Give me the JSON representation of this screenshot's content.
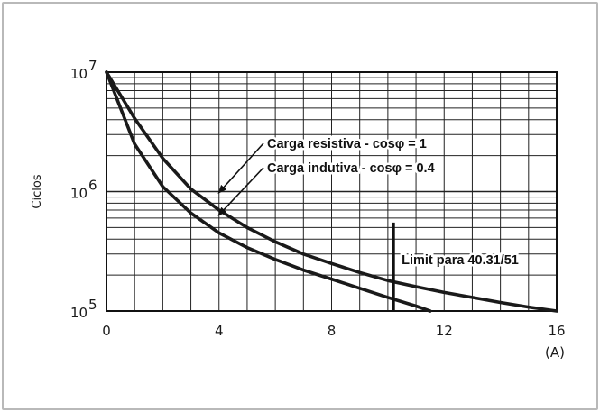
{
  "chart_data": {
    "type": "line",
    "title": "",
    "ylabel": "Ciclos",
    "xlabel": "(A)",
    "x_ticks": [
      "0",
      "4",
      "8",
      "12",
      "16"
    ],
    "y_ticks": [
      {
        "base": "10",
        "exp": "5",
        "value": 100000
      },
      {
        "base": "10",
        "exp": "6",
        "value": 1000000
      },
      {
        "base": "10",
        "exp": "7",
        "value": 10000000
      }
    ],
    "xlim": [
      0,
      16
    ],
    "ylim": [
      100000,
      10000000
    ],
    "y_scale": "log",
    "grid": true,
    "series": [
      {
        "name": "Carga resistiva - cosφ = 1",
        "x": [
          0,
          1,
          2,
          3,
          4,
          5,
          6,
          7,
          8,
          9,
          10,
          11,
          12,
          13,
          14,
          15,
          16
        ],
        "y": [
          10000000,
          4100000,
          1900000,
          1050000,
          700000,
          500000,
          380000,
          300000,
          250000,
          210000,
          180000,
          160000,
          143000,
          130000,
          118000,
          108000,
          100000
        ]
      },
      {
        "name": "Carga indutiva - cosφ = 0.4",
        "x": [
          0,
          1,
          2,
          3,
          4,
          5,
          6,
          7,
          8,
          9,
          10,
          11,
          11.5
        ],
        "y": [
          10000000,
          2500000,
          1100000,
          660000,
          450000,
          340000,
          270000,
          220000,
          185000,
          155000,
          130000,
          110000,
          100000
        ]
      }
    ],
    "limit_line": {
      "x": 10.2,
      "y_top": 550000,
      "label": "Limit para 40.31/51"
    },
    "annotations": [
      {
        "text": "Carga resistiva  - cosφ = 1",
        "arrow_to_x": 4,
        "arrow_to_y": 1000000
      },
      {
        "text": "Carga indutiva - cosφ = 0.4",
        "arrow_to_x": 4,
        "arrow_to_y": 650000
      }
    ]
  }
}
